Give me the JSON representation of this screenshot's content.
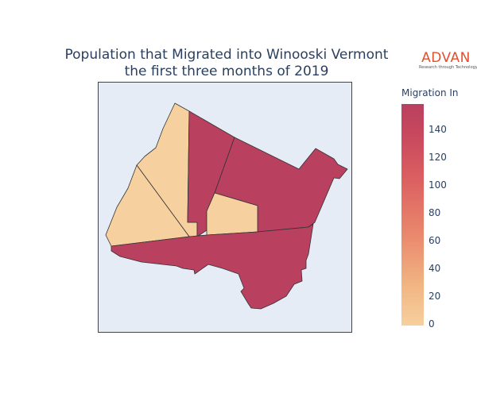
{
  "title_line1": "Population that Migrated into Winooski Vermont",
  "title_line2": "the first three months of 2019",
  "brand": {
    "name": "ADVAN",
    "tagline": "Research through Technology"
  },
  "legend": {
    "title": "Migration In",
    "ticks": [
      "140",
      "120",
      "100",
      "80",
      "60",
      "40",
      "20",
      "0"
    ],
    "range": [
      0,
      157
    ],
    "colorscale": [
      "#f6d09e",
      "#f1b583",
      "#ea8a6d",
      "#dc6161",
      "#c9495e",
      "#b9405f"
    ]
  },
  "map": {
    "background": "#e5ecf6",
    "regions": [
      {
        "id": "region-north-west",
        "value": 0
      },
      {
        "id": "region-west",
        "value": 0
      },
      {
        "id": "region-central-north",
        "value": 157
      },
      {
        "id": "region-north-east",
        "value": 157
      },
      {
        "id": "region-central-small",
        "value": 0
      },
      {
        "id": "region-south",
        "value": 157
      }
    ]
  }
}
